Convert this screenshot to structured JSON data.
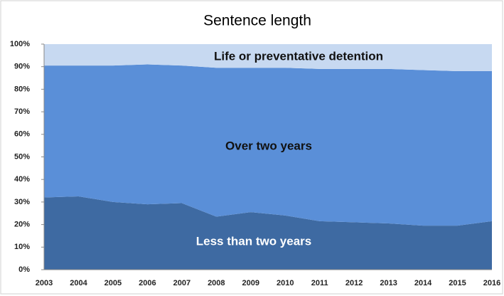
{
  "chart_data": {
    "type": "stacked_area",
    "title": "Sentence length",
    "categories": [
      "2003",
      "2004",
      "2005",
      "2006",
      "2007",
      "2008",
      "2009",
      "2010",
      "2011",
      "2012",
      "2013",
      "2014",
      "2015",
      "2016"
    ],
    "series": [
      {
        "name": "Less than two years",
        "color": "#3e6aa2",
        "values": [
          32,
          32.5,
          30,
          29,
          29.5,
          23.5,
          25.5,
          24,
          21.5,
          21,
          20.5,
          19.5,
          19.5,
          21.5
        ]
      },
      {
        "name": "Over two years",
        "color": "#5a8fd8",
        "values": [
          58.5,
          58,
          60.5,
          62,
          61,
          66,
          64,
          65.5,
          67.5,
          68,
          68.5,
          69,
          68.5,
          66.5
        ]
      },
      {
        "name": "Life or preventative detention",
        "color": "#c7d9f1",
        "values": [
          9.5,
          9.5,
          9.5,
          9,
          9.5,
          10.5,
          10.5,
          10.5,
          11,
          11,
          11,
          11.5,
          12,
          12
        ]
      }
    ],
    "ylim": [
      0,
      100
    ],
    "yticks": [
      {
        "value": 0,
        "label": "0%"
      },
      {
        "value": 10,
        "label": "10%"
      },
      {
        "value": 20,
        "label": "20%"
      },
      {
        "value": 30,
        "label": "30%"
      },
      {
        "value": 40,
        "label": "40%"
      },
      {
        "value": 50,
        "label": "50%"
      },
      {
        "value": 60,
        "label": "60%"
      },
      {
        "value": 70,
        "label": "70%"
      },
      {
        "value": 80,
        "label": "80%"
      },
      {
        "value": 90,
        "label": "90%"
      },
      {
        "value": 100,
        "label": "100%"
      }
    ],
    "grid": false
  }
}
